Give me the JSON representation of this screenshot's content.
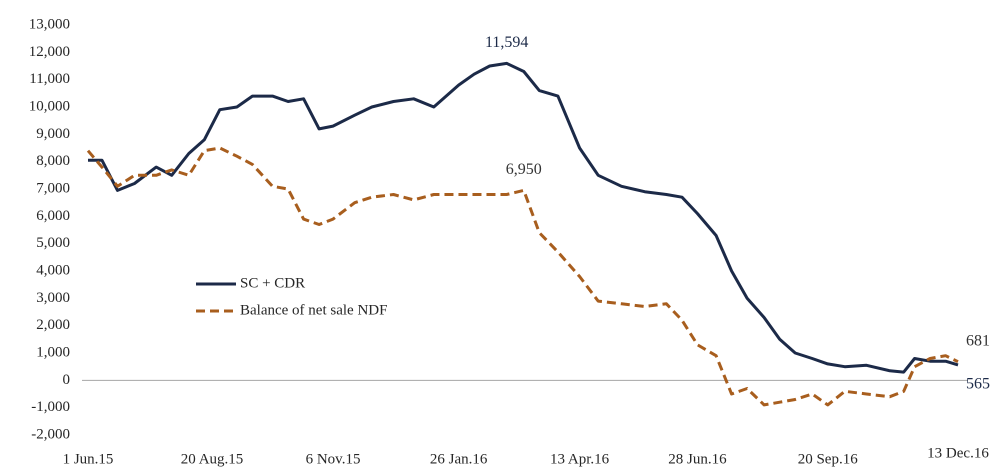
{
  "chart_data": {
    "type": "line",
    "x": [
      "2015-06-01",
      "2015-06-10",
      "2015-06-20",
      "2015-07-01",
      "2015-07-15",
      "2015-07-25",
      "2015-08-05",
      "2015-08-15",
      "2015-08-25",
      "2015-09-05",
      "2015-09-15",
      "2015-09-28",
      "2015-10-08",
      "2015-10-18",
      "2015-10-28",
      "2015-11-06",
      "2015-11-20",
      "2015-12-01",
      "2015-12-15",
      "2015-12-28",
      "2016-01-10",
      "2016-01-26",
      "2016-02-05",
      "2016-02-15",
      "2016-02-26",
      "2016-03-08",
      "2016-03-18",
      "2016-03-30",
      "2016-04-13",
      "2016-04-25",
      "2016-05-10",
      "2016-05-25",
      "2016-06-08",
      "2016-06-18",
      "2016-06-28",
      "2016-07-10",
      "2016-07-20",
      "2016-07-30",
      "2016-08-10",
      "2016-08-20",
      "2016-08-30",
      "2016-09-10",
      "2016-09-20",
      "2016-10-01",
      "2016-10-15",
      "2016-10-30",
      "2016-11-08",
      "2016-11-15",
      "2016-11-25",
      "2016-12-05",
      "2016-12-13"
    ],
    "series": [
      {
        "name": "SC + CDR",
        "color": "#1c2a48",
        "dashed": false,
        "values": [
          8050,
          8050,
          6950,
          7200,
          7800,
          7500,
          8300,
          8800,
          9900,
          10000,
          10400,
          10400,
          10200,
          10300,
          9200,
          9300,
          9700,
          10000,
          10200,
          10300,
          10000,
          10800,
          11200,
          11500,
          11594,
          11300,
          10600,
          10400,
          8500,
          7500,
          7100,
          6900,
          6800,
          6700,
          6100,
          5300,
          4000,
          3000,
          2300,
          1500,
          1000,
          800,
          600,
          500,
          550,
          350,
          300,
          800,
          700,
          700,
          565
        ],
        "value_labels": [
          null,
          null,
          null,
          null,
          null,
          null,
          null,
          null,
          null,
          null,
          null,
          null,
          null,
          null,
          null,
          null,
          null,
          null,
          null,
          null,
          null,
          null,
          null,
          null,
          "11,594",
          null,
          null,
          null,
          null,
          null,
          null,
          null,
          null,
          null,
          null,
          null,
          null,
          null,
          null,
          null,
          null,
          null,
          null,
          null,
          null,
          null,
          null,
          null,
          null,
          null,
          "565"
        ]
      },
      {
        "name": "Balance of net sale NDF",
        "color": "#a85e1e",
        "dashed": true,
        "values": [
          8400,
          7800,
          7100,
          7500,
          7500,
          7700,
          7500,
          8400,
          8500,
          8200,
          7900,
          7100,
          7000,
          5900,
          5700,
          5900,
          6500,
          6700,
          6800,
          6600,
          6800,
          6800,
          6800,
          6800,
          6800,
          6950,
          5400,
          4700,
          3800,
          2900,
          2800,
          2700,
          2800,
          2200,
          1300,
          900,
          -500,
          -300,
          -900,
          -800,
          -700,
          -500,
          -900,
          -400,
          -500,
          -600,
          -400,
          500,
          800,
          900,
          681
        ],
        "value_labels": [
          null,
          null,
          null,
          null,
          null,
          null,
          null,
          null,
          null,
          null,
          null,
          null,
          null,
          null,
          null,
          null,
          null,
          null,
          null,
          null,
          null,
          null,
          null,
          null,
          null,
          "6,950",
          null,
          null,
          null,
          null,
          null,
          null,
          null,
          null,
          null,
          null,
          null,
          null,
          null,
          null,
          null,
          null,
          null,
          null,
          null,
          null,
          null,
          null,
          null,
          null,
          "681"
        ]
      }
    ],
    "xlim": [
      "2015-06-01",
      "2016-12-13"
    ],
    "xticks": [
      {
        "value": "2015-06-01",
        "label": "1 Jun.15"
      },
      {
        "value": "2015-08-20",
        "label": "20 Aug.15"
      },
      {
        "value": "2015-11-06",
        "label": "6 Nov.15"
      },
      {
        "value": "2016-01-26",
        "label": "26 Jan.16"
      },
      {
        "value": "2016-04-13",
        "label": "13 Apr.16"
      },
      {
        "value": "2016-06-28",
        "label": "28 Jun.16"
      },
      {
        "value": "2016-09-20",
        "label": "20 Sep.16"
      },
      {
        "value": "2016-12-13",
        "label": "13 Dec.16"
      }
    ],
    "ylim": [
      -2000,
      13000
    ],
    "yticks": [
      {
        "value": -2000,
        "label": "-2,000"
      },
      {
        "value": -1000,
        "label": "-1,000"
      },
      0,
      {
        "value": 1000,
        "label": "1,000"
      },
      {
        "value": 2000,
        "label": "2,000"
      },
      {
        "value": 3000,
        "label": "3,000"
      },
      {
        "value": 4000,
        "label": "4,000"
      },
      {
        "value": 5000,
        "label": "5,000"
      },
      {
        "value": 6000,
        "label": "6,000"
      },
      {
        "value": 7000,
        "label": "7,000"
      },
      {
        "value": 8000,
        "label": "8,000"
      },
      {
        "value": 9000,
        "label": "9,000"
      },
      {
        "value": 10000,
        "label": "10,000"
      },
      {
        "value": 11000,
        "label": "11,000"
      },
      {
        "value": 12000,
        "label": "12,000"
      },
      {
        "value": 13000,
        "label": "13,000"
      }
    ],
    "grid": false,
    "legend": "center-left"
  }
}
